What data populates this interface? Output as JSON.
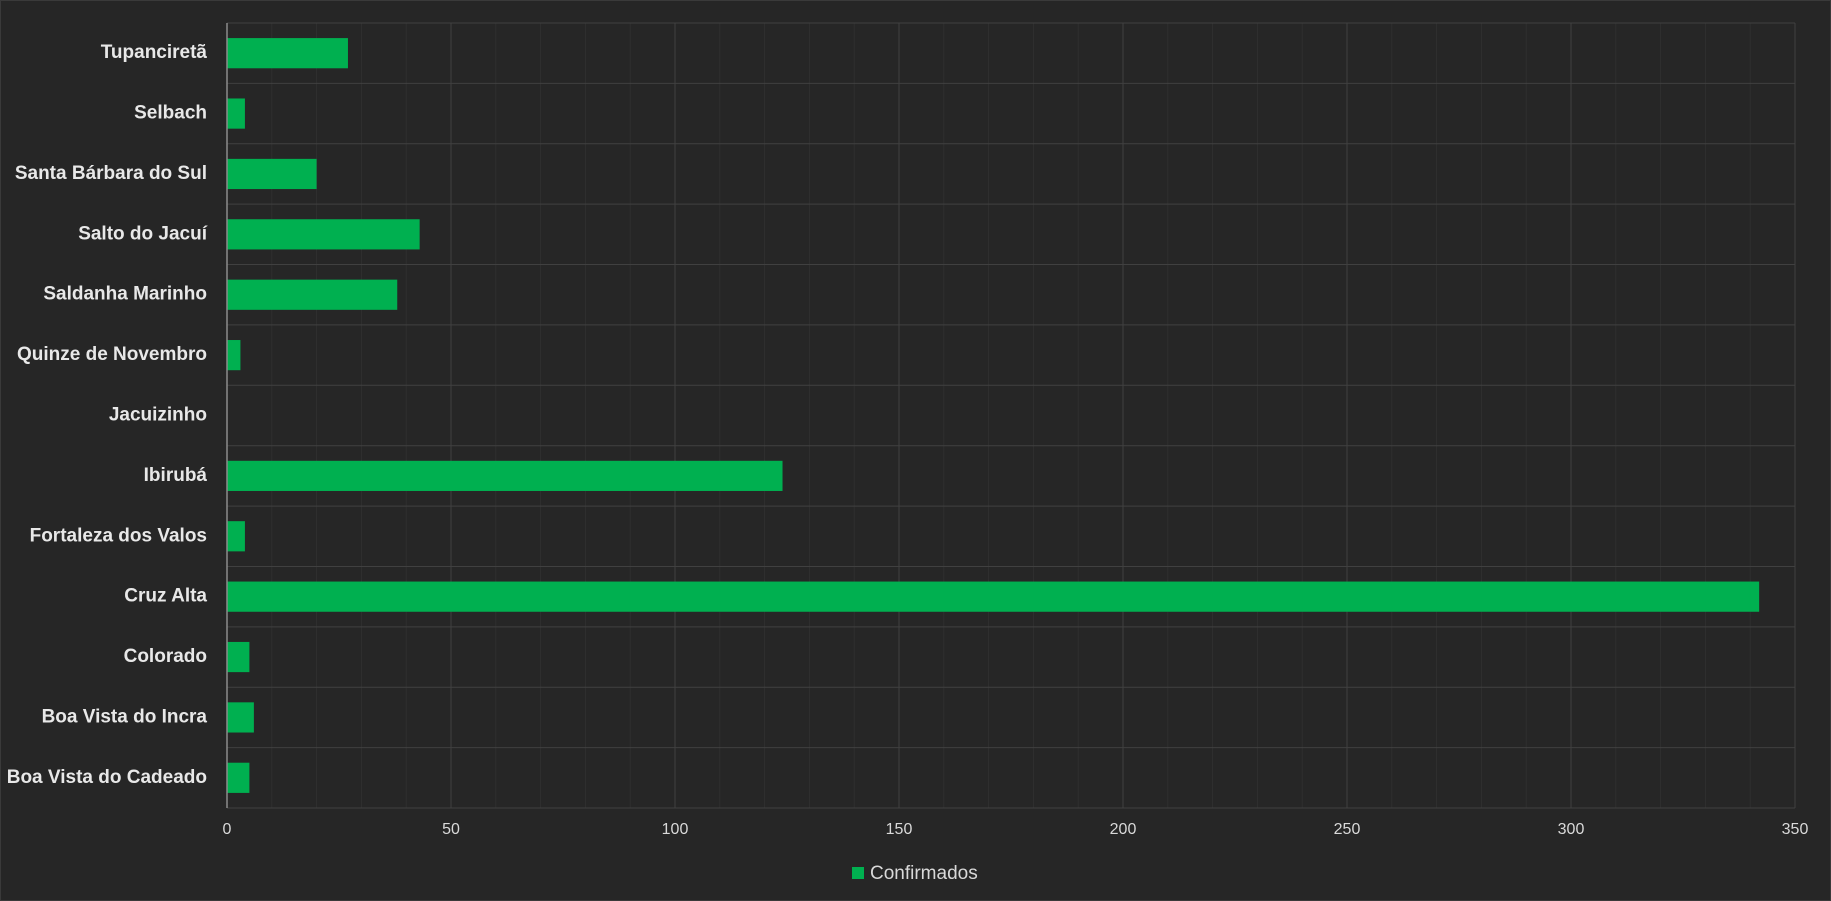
{
  "chart_data": {
    "type": "bar",
    "orientation": "horizontal",
    "categories": [
      "Tupanciretã",
      "Selbach",
      "Santa Bárbara do Sul",
      "Salto do Jacuí",
      "Saldanha Marinho",
      "Quinze de Novembro",
      "Jacuizinho",
      "Ibirubá",
      "Fortaleza dos Valos",
      "Cruz Alta",
      "Colorado",
      "Boa Vista do Incra",
      "Boa Vista do Cadeado"
    ],
    "series": [
      {
        "name": "Confirmados",
        "color": "#00b050",
        "values": [
          27,
          4,
          20,
          43,
          38,
          3,
          0,
          124,
          4,
          342,
          5,
          6,
          5
        ]
      }
    ],
    "title": "",
    "xlabel": "",
    "ylabel": "",
    "xlim": [
      0,
      350
    ],
    "xticks": [
      0,
      50,
      100,
      150,
      200,
      250,
      300,
      350
    ],
    "grid": true,
    "legend_position": "bottom",
    "colors": {
      "background": "#262626",
      "gridline_major": "#404040",
      "gridline_minor": "#303030",
      "axis": "#8c8c8c",
      "bar": "#00b050"
    }
  }
}
